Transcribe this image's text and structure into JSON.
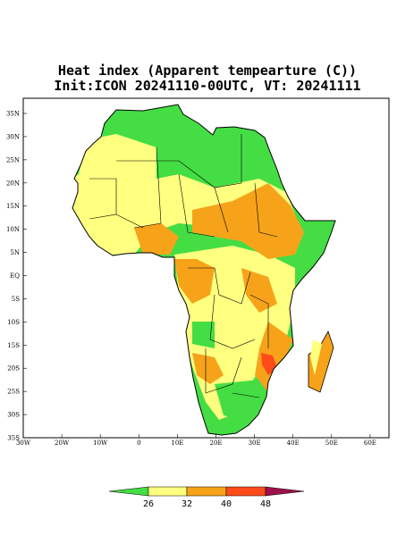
{
  "map": {
    "title": "Heat index (Apparent tempearture (C))",
    "subtitle": "Init:ICON 20241110-00UTC, VT: 20241111",
    "lat_labels": [
      "35N",
      "30N",
      "25N",
      "20N",
      "15N",
      "10N",
      "5N",
      "EQ",
      "5S",
      "10S",
      "15S",
      "20S",
      "25S",
      "30S",
      "35S"
    ],
    "lon_labels": [
      "30W",
      "20W",
      "10W",
      "0",
      "10E",
      "20E",
      "30E",
      "40E",
      "50E",
      "60E"
    ],
    "colorbar_labels": [
      "26",
      "32",
      "40",
      "48"
    ]
  }
}
